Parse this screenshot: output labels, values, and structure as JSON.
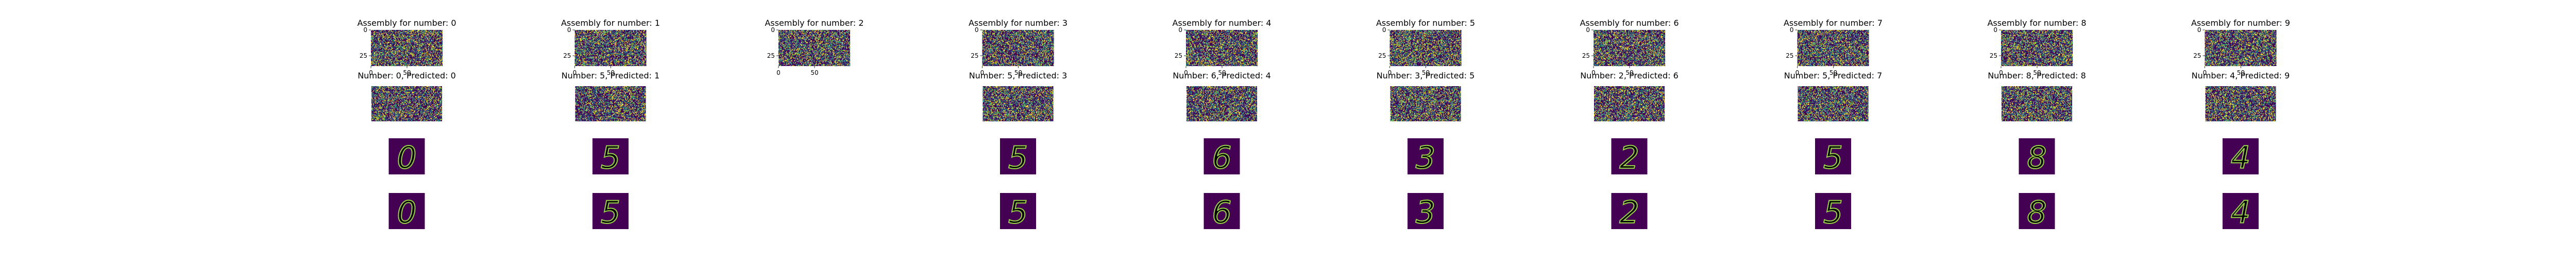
{
  "chart_data": {
    "type": "heatmap",
    "panels": [
      {
        "number": 0,
        "title": "Assembly for number: 0",
        "label": "Number: 0, Predicted: 0",
        "shown_digit": "0",
        "has_pred": true
      },
      {
        "number": 1,
        "title": "Assembly for number: 1",
        "label": "Number: 5, Predicted: 1",
        "shown_digit": "5",
        "has_pred": true
      },
      {
        "number": 2,
        "title": "Assembly for number: 2",
        "label": "",
        "shown_digit": "",
        "has_pred": false
      },
      {
        "number": 3,
        "title": "Assembly for number: 3",
        "label": "Number: 5, Predicted: 3",
        "shown_digit": "5",
        "has_pred": true
      },
      {
        "number": 4,
        "title": "Assembly for number: 4",
        "label": "Number: 6, Predicted: 4",
        "shown_digit": "6",
        "has_pred": true
      },
      {
        "number": 5,
        "title": "Assembly for number: 5",
        "label": "Number: 3, Predicted: 5",
        "shown_digit": "3",
        "has_pred": true
      },
      {
        "number": 6,
        "title": "Assembly for number: 6",
        "label": "Number: 2, Predicted: 6",
        "shown_digit": "2",
        "has_pred": true
      },
      {
        "number": 7,
        "title": "Assembly for number: 7",
        "label": "Number: 5, Predicted: 7",
        "shown_digit": "5",
        "has_pred": true
      },
      {
        "number": 8,
        "title": "Assembly for number: 8",
        "label": "Number: 8, Predicted: 8",
        "shown_digit": "8",
        "has_pred": true
      },
      {
        "number": 9,
        "title": "Assembly for number: 9",
        "label": "Number: 4, Predicted: 9",
        "shown_digit": "4",
        "has_pred": true
      }
    ],
    "assembly_axis": {
      "yticks": [
        "0",
        "25"
      ],
      "xticks": [
        "0",
        "50"
      ]
    },
    "colormap": [
      "#440154",
      "#3b528b",
      "#21918c",
      "#5ec962",
      "#fde725"
    ]
  }
}
